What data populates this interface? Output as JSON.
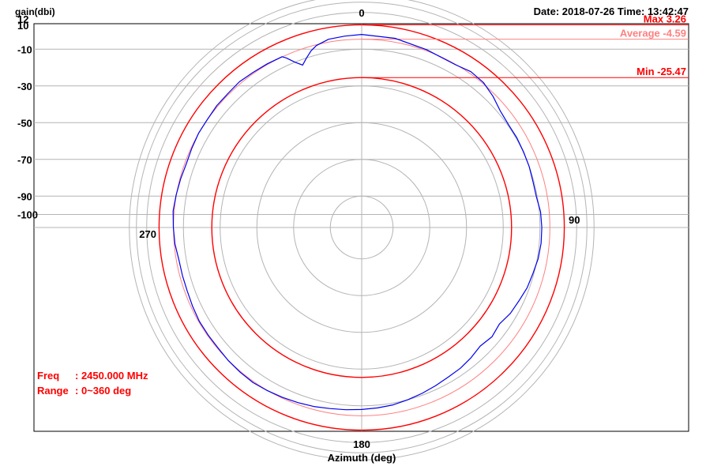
{
  "chart_data": {
    "type": "polar-line",
    "ylabel": "gain(dbi)",
    "xlabel": "Azimuth (deg)",
    "datetime": "Date: 2018-07-26  Time: 13:42:47",
    "rlim": [
      -100,
      12
    ],
    "y_ticks": [
      {
        "label": "12",
        "value": 12
      },
      {
        "label": "10",
        "value": 10
      },
      {
        "label": "-10",
        "value": -10
      },
      {
        "label": "-30",
        "value": -30
      },
      {
        "label": "-50",
        "value": -50
      },
      {
        "label": "-70",
        "value": -70
      },
      {
        "label": "-90",
        "value": -90
      },
      {
        "label": "-100",
        "value": -100
      }
    ],
    "angle_labels": [
      {
        "label": "0",
        "angle": 0
      },
      {
        "label": "90",
        "angle": 90
      },
      {
        "label": "180",
        "angle": 180
      },
      {
        "label": "270",
        "angle": 270
      }
    ],
    "ref_lines": [
      {
        "name": "max",
        "label": "Max 3.26",
        "value": 3.26,
        "color": "#ff0000"
      },
      {
        "name": "average",
        "label": "Average -4.59",
        "value": -4.59,
        "color": "#ff8080"
      },
      {
        "name": "min",
        "label": "Min -25.47",
        "value": -25.47,
        "color": "#ff0000"
      }
    ],
    "series": [
      {
        "name": "gain",
        "color": "#0000ee",
        "angles": [
          0,
          10,
          20,
          30,
          35,
          40,
          45,
          50,
          55,
          60,
          65,
          70,
          75,
          80,
          85,
          90,
          95,
          100,
          105,
          110,
          115,
          120,
          125,
          130,
          135,
          140,
          145,
          150,
          155,
          160,
          165,
          170,
          175,
          180,
          185,
          190,
          195,
          200,
          205,
          210,
          215,
          220,
          225,
          230,
          235,
          240,
          245,
          250,
          255,
          260,
          265,
          270,
          275,
          280,
          285,
          290,
          295,
          300,
          305,
          310,
          315,
          320,
          325,
          330,
          335,
          336,
          338,
          340,
          342,
          344,
          346,
          350,
          355,
          360
        ],
        "values": [
          -2.0,
          -2.5,
          -4.0,
          -4.8,
          -3.5,
          -4.0,
          -6.0,
          -8.5,
          -9.5,
          -9.5,
          -9.8,
          -10.0,
          -10.5,
          -10.5,
          -9.3,
          -9.0,
          -9.0,
          -9.5,
          -10.5,
          -11.2,
          -12.6,
          -13.6,
          -15.5,
          -14.5,
          -15.8,
          -14.5,
          -13.5,
          -13.0,
          -12.0,
          -11.0,
          -10.0,
          -9.0,
          -8.5,
          -8.0,
          -7.5,
          -7.0,
          -6.2,
          -5.6,
          -5.0,
          -4.5,
          -4.0,
          -4.2,
          -4.5,
          -5.0,
          -5.0,
          -5.0,
          -5.5,
          -6.0,
          -6.0,
          -6.0,
          -5.0,
          -4.5,
          -4.0,
          -4.5,
          -5.0,
          -5.5,
          -5.0,
          -4.5,
          -4.5,
          -4.0,
          -4.0,
          -3.5,
          -4.0,
          -4.2,
          -4.5,
          -6.0,
          -10.0,
          -13.0,
          -10.0,
          -7.0,
          -5.0,
          -3.0,
          -2.5,
          -2.0
        ]
      }
    ]
  },
  "info": {
    "freq_label": "Freq",
    "freq_value": ": 2450.000 MHz",
    "range_label": "Range",
    "range_value": ": 0~360 deg"
  }
}
